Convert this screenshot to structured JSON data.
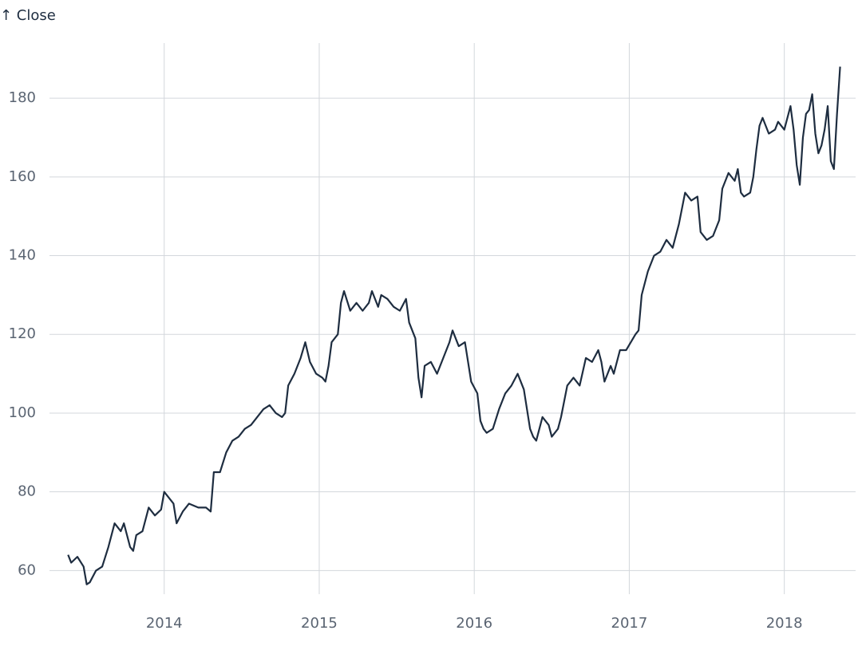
{
  "chart_data": {
    "type": "line",
    "y_label": "↑ Close",
    "x": [
      2013.38,
      2013.4,
      2013.44,
      2013.48,
      2013.5,
      2013.52,
      2013.56,
      2013.6,
      2013.64,
      2013.68,
      2013.72,
      2013.74,
      2013.78,
      2013.8,
      2013.82,
      2013.86,
      2013.9,
      2013.94,
      2013.98,
      2014.0,
      2014.06,
      2014.08,
      2014.12,
      2014.16,
      2014.22,
      2014.27,
      2014.3,
      2014.32,
      2014.36,
      2014.4,
      2014.44,
      2014.48,
      2014.52,
      2014.56,
      2014.6,
      2014.64,
      2014.68,
      2014.72,
      2014.76,
      2014.78,
      2014.8,
      2014.84,
      2014.88,
      2014.91,
      2014.94,
      2014.98,
      2015.02,
      2015.04,
      2015.06,
      2015.08,
      2015.12,
      2015.14,
      2015.16,
      2015.2,
      2015.24,
      2015.28,
      2015.32,
      2015.34,
      2015.38,
      2015.4,
      2015.44,
      2015.48,
      2015.52,
      2015.56,
      2015.58,
      2015.62,
      2015.64,
      2015.66,
      2015.68,
      2015.72,
      2015.76,
      2015.8,
      2015.84,
      2015.86,
      2015.9,
      2015.94,
      2015.98,
      2016.02,
      2016.04,
      2016.06,
      2016.08,
      2016.12,
      2016.16,
      2016.2,
      2016.24,
      2016.28,
      2016.32,
      2016.36,
      2016.38,
      2016.4,
      2016.42,
      2016.44,
      2016.48,
      2016.5,
      2016.54,
      2016.56,
      2016.58,
      2016.6,
      2016.64,
      2016.68,
      2016.72,
      2016.76,
      2016.8,
      2016.82,
      2016.84,
      2016.86,
      2016.88,
      2016.9,
      2016.94,
      2016.98,
      2017.04,
      2017.06,
      2017.08,
      2017.12,
      2017.16,
      2017.2,
      2017.24,
      2017.28,
      2017.32,
      2017.36,
      2017.4,
      2017.44,
      2017.46,
      2017.5,
      2017.54,
      2017.58,
      2017.6,
      2017.64,
      2017.68,
      2017.7,
      2017.72,
      2017.74,
      2017.78,
      2017.8,
      2017.82,
      2017.84,
      2017.86,
      2017.9,
      2017.94,
      2017.96,
      2018.0,
      2018.04,
      2018.06,
      2018.08,
      2018.1,
      2018.12,
      2018.14,
      2018.16,
      2018.18,
      2018.2,
      2018.22,
      2018.24,
      2018.26,
      2018.28,
      2018.3,
      2018.32,
      2018.34,
      2018.36
    ],
    "series": [
      {
        "color": "#1e2d40",
        "values": [
          64,
          62,
          63.5,
          61,
          56.5,
          57,
          60,
          61,
          66,
          72,
          70,
          72,
          66,
          65,
          69,
          70,
          76,
          74,
          75.5,
          80,
          77,
          72,
          75,
          77,
          76,
          76,
          75,
          85,
          85,
          90,
          93,
          94,
          96,
          97,
          99,
          101,
          102,
          100,
          99,
          100,
          107,
          110,
          114,
          118,
          113,
          110,
          109,
          108,
          112,
          118,
          120,
          128,
          131,
          126,
          128,
          126,
          128,
          131,
          127,
          130,
          129,
          127,
          126,
          129,
          123,
          119,
          109,
          104,
          112,
          113,
          110,
          114,
          118,
          121,
          117,
          118,
          108,
          105,
          98,
          96,
          95,
          96,
          101,
          105,
          107,
          110,
          106,
          96,
          94,
          93,
          96,
          99,
          97,
          94,
          96,
          99,
          103,
          107,
          109,
          107,
          114,
          113,
          116,
          113,
          108,
          110,
          112,
          110,
          116,
          116,
          120,
          121,
          130,
          136,
          140,
          141,
          144,
          142,
          148,
          156,
          154,
          155,
          146,
          144,
          145,
          149,
          157,
          161,
          159,
          162,
          156,
          155,
          156,
          160,
          167,
          173,
          175,
          171,
          172,
          174,
          172,
          178,
          172,
          163,
          158,
          170,
          176,
          177,
          181,
          171,
          166,
          168,
          172,
          178,
          164,
          162,
          176,
          188
        ]
      }
    ],
    "xlim": [
      2013.26,
      2018.46
    ],
    "xticks": [
      2014,
      2015,
      2016,
      2017,
      2018
    ],
    "ylim": [
      54,
      194
    ],
    "yticks": [
      60,
      80,
      100,
      120,
      140,
      160,
      180
    ],
    "grid": true
  }
}
